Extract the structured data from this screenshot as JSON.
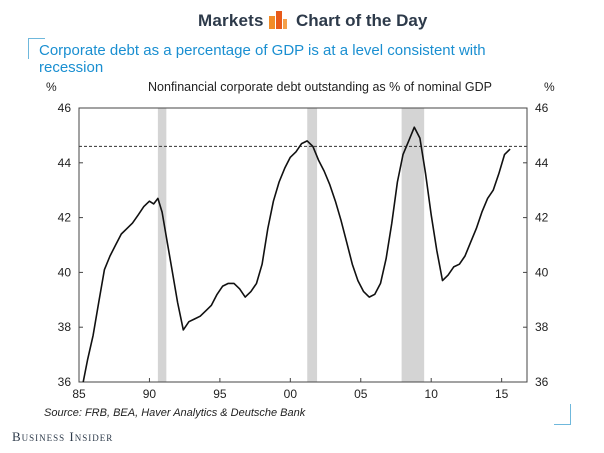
{
  "header": {
    "left_label": "Markets",
    "right_label": "Chart of the Day"
  },
  "footer": {
    "brand": "Business Insider"
  },
  "chart_data": {
    "type": "line",
    "title": "Corporate debt as a percentage of GDP is at a level consistent with recession",
    "subtitle": "Nonfinancial corporate debt outstanding as % of nominal GDP",
    "ylabel_left": "%",
    "ylabel_right": "%",
    "source": "Source: FRB, BEA, Haver Analytics & Deutsche Bank",
    "x_ticks": [
      {
        "value": 1985,
        "label": "85"
      },
      {
        "value": 1990,
        "label": "90"
      },
      {
        "value": 1995,
        "label": "95"
      },
      {
        "value": 2000,
        "label": "00"
      },
      {
        "value": 2005,
        "label": "05"
      },
      {
        "value": 2010,
        "label": "10"
      },
      {
        "value": 2015,
        "label": "15"
      }
    ],
    "xlim": [
      1985,
      2016.8
    ],
    "ylim": [
      36,
      46
    ],
    "y_ticks": [
      36,
      38,
      40,
      42,
      44,
      46
    ],
    "recessions": [
      [
        1990.6,
        1991.2
      ],
      [
        2001.2,
        2001.9
      ],
      [
        2007.9,
        2009.5
      ]
    ],
    "reference_line": 44.6,
    "series": [
      {
        "color": "#111111",
        "x": [
          1985.3,
          1985.6,
          1986,
          1986.4,
          1986.8,
          1987.2,
          1987.6,
          1988,
          1988.4,
          1988.8,
          1989.2,
          1989.6,
          1990,
          1990.3,
          1990.6,
          1990.9,
          1991.2,
          1991.6,
          1992,
          1992.4,
          1992.8,
          1993.2,
          1993.6,
          1994,
          1994.4,
          1994.8,
          1995.2,
          1995.6,
          1996,
          1996.4,
          1996.8,
          1997.2,
          1997.6,
          1998,
          1998.4,
          1998.8,
          1999.2,
          1999.6,
          2000,
          2000.4,
          2000.8,
          2001.2,
          2001.6,
          2002,
          2002.4,
          2002.8,
          2003.2,
          2003.6,
          2004,
          2004.4,
          2004.8,
          2005.2,
          2005.6,
          2006,
          2006.4,
          2006.8,
          2007.2,
          2007.6,
          2008,
          2008.4,
          2008.8,
          2009.2,
          2009.6,
          2010,
          2010.4,
          2010.8,
          2011.2,
          2011.6,
          2012,
          2012.4,
          2012.8,
          2013.2,
          2013.6,
          2014,
          2014.4,
          2014.8,
          2015.2,
          2015.6
        ],
        "y": [
          36.0,
          36.8,
          37.7,
          38.9,
          40.1,
          40.6,
          41.0,
          41.4,
          41.6,
          41.8,
          42.1,
          42.4,
          42.6,
          42.5,
          42.7,
          42.2,
          41.3,
          40.1,
          38.9,
          37.9,
          38.2,
          38.3,
          38.4,
          38.6,
          38.8,
          39.2,
          39.5,
          39.6,
          39.6,
          39.4,
          39.1,
          39.3,
          39.6,
          40.3,
          41.6,
          42.6,
          43.3,
          43.8,
          44.2,
          44.4,
          44.7,
          44.8,
          44.6,
          44.1,
          43.7,
          43.2,
          42.6,
          41.9,
          41.1,
          40.3,
          39.7,
          39.3,
          39.1,
          39.2,
          39.6,
          40.5,
          41.8,
          43.3,
          44.3,
          44.8,
          45.3,
          44.9,
          43.6,
          42.1,
          40.8,
          39.7,
          39.9,
          40.2,
          40.3,
          40.6,
          41.1,
          41.6,
          42.2,
          42.7,
          43.0,
          43.6,
          44.3,
          44.5
        ]
      }
    ]
  }
}
